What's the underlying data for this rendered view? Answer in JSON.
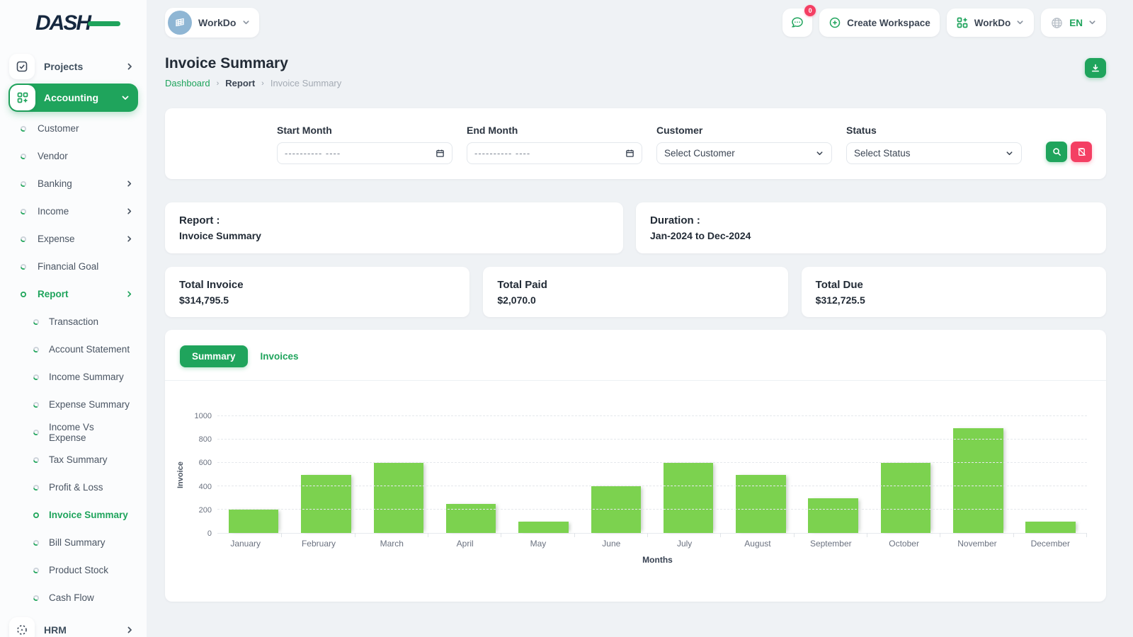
{
  "brand": {
    "logo_main": "DASH"
  },
  "workspace_switcher": {
    "name": "WorkDo"
  },
  "topbar": {
    "messages_badge": "0",
    "create_workspace_label": "Create Workspace",
    "app_switcher_label": "WorkDo",
    "language_code": "EN"
  },
  "page_header": {
    "title": "Invoice Summary",
    "breadcrumb": {
      "home": "Dashboard",
      "section": "Report",
      "current": "Invoice Summary"
    }
  },
  "sidebar": {
    "projects": {
      "label": "Projects"
    },
    "accounting": {
      "label": "Accounting"
    },
    "accounting_children": [
      {
        "label": "Customer"
      },
      {
        "label": "Vendor"
      },
      {
        "label": "Banking"
      },
      {
        "label": "Income"
      },
      {
        "label": "Expense"
      },
      {
        "label": "Financial Goal"
      },
      {
        "label": "Report"
      }
    ],
    "report_children": [
      {
        "label": "Transaction"
      },
      {
        "label": "Account Statement"
      },
      {
        "label": "Income Summary"
      },
      {
        "label": "Expense Summary"
      },
      {
        "label": "Income Vs Expense"
      },
      {
        "label": "Tax Summary"
      },
      {
        "label": "Profit & Loss"
      },
      {
        "label": "Invoice Summary"
      },
      {
        "label": "Bill Summary"
      },
      {
        "label": "Product Stock"
      },
      {
        "label": "Cash Flow"
      }
    ],
    "hrm": {
      "label": "HRM"
    }
  },
  "filters": {
    "start_month": {
      "label": "Start Month",
      "placeholder": "---------- ----"
    },
    "end_month": {
      "label": "End Month",
      "placeholder": "---------- ----"
    },
    "customer": {
      "label": "Customer",
      "value": "Select Customer"
    },
    "status": {
      "label": "Status",
      "value": "Select Status"
    }
  },
  "report_info": {
    "report_label": "Report :",
    "report_value": "Invoice Summary",
    "duration_label": "Duration :",
    "duration_value": "Jan-2024 to Dec-2024"
  },
  "totals": [
    {
      "label": "Total Invoice",
      "value": "$314,795.5"
    },
    {
      "label": "Total Paid",
      "value": "$2,070.0"
    },
    {
      "label": "Total Due",
      "value": "$312,725.5"
    }
  ],
  "tabs": {
    "summary": "Summary",
    "invoices": "Invoices"
  },
  "chart_data": {
    "type": "bar",
    "categories": [
      "January",
      "February",
      "March",
      "April",
      "May",
      "June",
      "July",
      "August",
      "September",
      "October",
      "November",
      "December"
    ],
    "values": [
      200,
      500,
      600,
      250,
      100,
      400,
      600,
      500,
      300,
      600,
      900,
      100
    ],
    "series_name": "Invoice",
    "xlabel": "Months",
    "ylabel": "Invoice",
    "ylim": [
      0,
      1000
    ],
    "yticks": [
      0,
      200,
      400,
      600,
      800,
      1000
    ],
    "grid": "horizontal-dashed",
    "legend": "none",
    "bar_color": "#7cd24f"
  },
  "colors": {
    "accent": "#1fa45c",
    "danger": "#f43f63",
    "bar": "#7cd24f"
  }
}
